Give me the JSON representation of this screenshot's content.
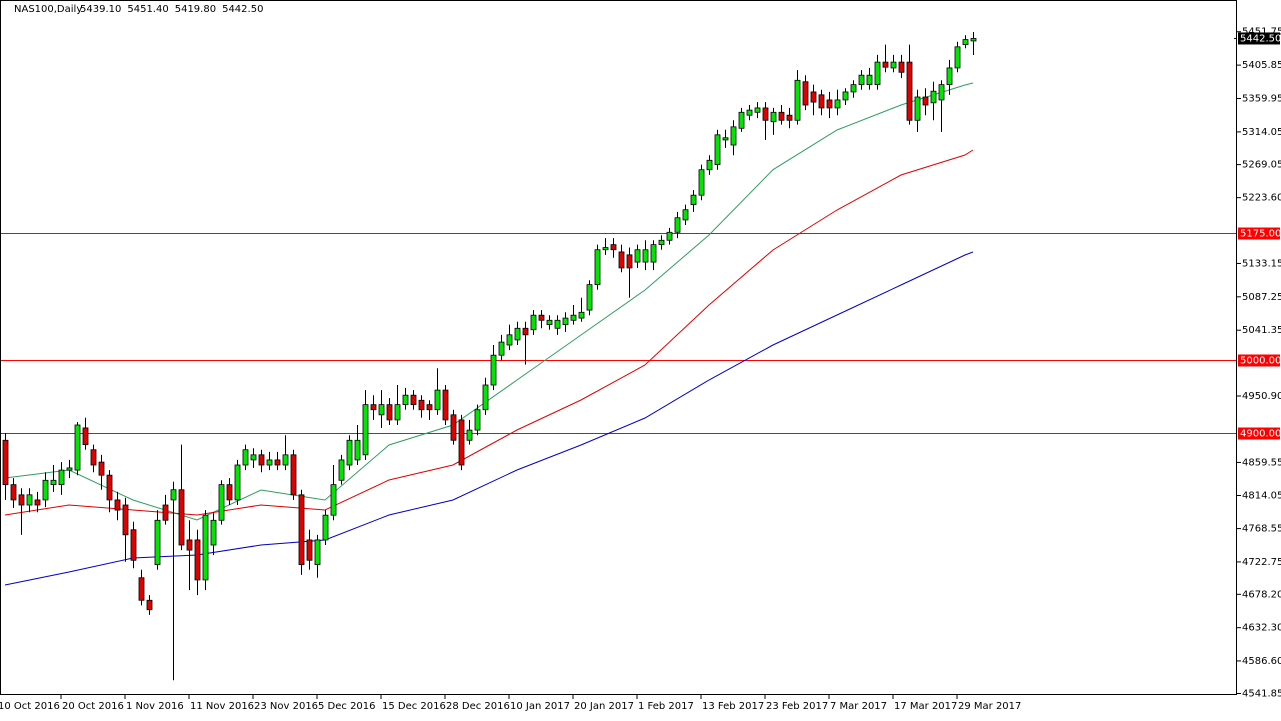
{
  "chart_data": {
    "type": "candlestick",
    "symbol": "NAS100,Daily",
    "header_values": [
      "5439.10",
      "5451.40",
      "5419.80",
      "5442.50"
    ],
    "xlim": [
      -0.625,
      154
    ],
    "ylim": [
      4539.75,
      5495.4
    ],
    "xticks": [
      {
        "value": -1,
        "label": "10 Oct 2016"
      },
      {
        "value": 7,
        "label": "20 Oct 2016"
      },
      {
        "value": 15,
        "label": "1 Nov 2016"
      },
      {
        "value": 23,
        "label": "11 Nov 2016"
      },
      {
        "value": 31,
        "label": "23 Nov 2016"
      },
      {
        "value": 39,
        "label": "5 Dec 2016"
      },
      {
        "value": 47,
        "label": "15 Dec 2016"
      },
      {
        "value": 55,
        "label": "28 Dec 2016"
      },
      {
        "value": 63,
        "label": "10 Jan 2017"
      },
      {
        "value": 71,
        "label": "20 Jan 2017"
      },
      {
        "value": 79,
        "label": "1 Feb 2017"
      },
      {
        "value": 87,
        "label": "13 Feb 2017"
      },
      {
        "value": 95,
        "label": "23 Feb 2017"
      },
      {
        "value": 103,
        "label": "7 Mar 2017"
      },
      {
        "value": 111,
        "label": "17 Mar 2017"
      },
      {
        "value": 119,
        "label": "29 Mar 2017"
      }
    ],
    "yticks": [
      5451.75,
      5405.85,
      5359.95,
      5314.05,
      5269.05,
      {
        "value": 5223.6,
        "label": "5223.60"
      },
      5133.15,
      5087.25,
      5041.35,
      {
        "value": 4950.9,
        "label": "4950.90"
      },
      4859.55,
      4814.05,
      4768.55,
      4722.75,
      {
        "value": 4678.2,
        "label": "4678.20"
      },
      {
        "value": 4632.3,
        "label": "4632.30"
      },
      {
        "value": 4586.6,
        "label": "4586.60"
      },
      4541.85
    ],
    "levels": [
      {
        "value": 5175,
        "label": "5175.00"
      },
      {
        "value": 5000,
        "label": "5000.00"
      },
      {
        "value": 4900,
        "label": "4900.00"
      }
    ],
    "level_color": "#ff0000",
    "last_price": {
      "value": 5442.5,
      "label": "5442.50"
    },
    "up_color": "#00e600",
    "down_color": "#e00000",
    "open": [
      4890,
      4829,
      4815,
      4801,
      4808,
      4808,
      4829,
      4829,
      4849,
      4849,
      4907,
      4877,
      4860,
      4842,
      4808,
      4801,
      4767,
      4701,
      4670,
      4719,
      4801,
      4808,
      4822,
      4753,
      4753,
      4698,
      4746,
      4780,
      4829,
      4808,
      4856,
      4863,
      4870,
      4856,
      4863,
      4856,
      4870,
      4815,
      4753,
      4719,
      4753,
      4787,
      4835,
      4856,
      4863,
      4870,
      4939,
      4925,
      4939,
      4918,
      4939,
      4952,
      4945,
      4939,
      4932,
      4959,
      4925,
      4918,
      4890,
      4904,
      4932,
      4966,
      5007,
      5021,
      5028,
      5044,
      5042,
      5062,
      5049,
      5044,
      5049,
      5055,
      5058,
      5069,
      5104,
      5152,
      5159,
      5149,
      5145,
      5135,
      5135,
      5135,
      5159,
      5165,
      5176,
      5193,
      5214,
      5227,
      5262,
      5269,
      5303,
      5296,
      5319,
      5337,
      5341,
      5347,
      5328,
      5341,
      5337,
      5330,
      5383,
      5369,
      5365,
      5358,
      5347,
      5358,
      5369,
      5379,
      5379,
      5379,
      5410,
      5402,
      5410,
      5410,
      5330,
      5362,
      5354,
      5358,
      5379,
      5402,
      5434,
      5439.1
    ],
    "high": [
      4900,
      4838,
      4824,
      4824,
      4819,
      4846,
      4856,
      4860,
      4863,
      4915,
      4921,
      4884,
      4870,
      4849,
      4819,
      4811,
      4778,
      4712,
      4677,
      4794,
      4815,
      4833,
      4884,
      4780,
      4767,
      4794,
      4791,
      4835,
      4838,
      4863,
      4884,
      4879,
      4877,
      4874,
      4874,
      4897,
      4877,
      4822,
      4767,
      4760,
      4794,
      4856,
      4870,
      4897,
      4911,
      4959,
      4952,
      4959,
      4948,
      4966,
      4962,
      4959,
      4952,
      4945,
      4989,
      4966,
      4932,
      4925,
      4918,
      4939,
      4976,
      5021,
      5035,
      5049,
      5053,
      5053,
      5069,
      5069,
      5062,
      5062,
      5066,
      5076,
      5086,
      5110,
      5159,
      5168,
      5168,
      5159,
      5155,
      5159,
      5165,
      5165,
      5172,
      5182,
      5204,
      5214,
      5234,
      5269,
      5282,
      5317,
      5317,
      5330,
      5347,
      5351,
      5355,
      5355,
      5347,
      5351,
      5347,
      5399,
      5392,
      5379,
      5372,
      5369,
      5372,
      5374,
      5385,
      5399,
      5402,
      5420,
      5434,
      5420,
      5420,
      5434,
      5372,
      5374,
      5383,
      5385,
      5413,
      5438,
      5447,
      5451.4
    ],
    "low": [
      4808,
      4797,
      4760,
      4791,
      4791,
      4798,
      4819,
      4815,
      4838,
      4842,
      4877,
      4846,
      4822,
      4791,
      4780,
      4723,
      4714,
      4663,
      4650,
      4712,
      4774,
      4560,
      4739,
      4684,
      4677,
      4684,
      4732,
      4774,
      4801,
      4801,
      4849,
      4852,
      4846,
      4849,
      4849,
      4849,
      4808,
      4705,
      4712,
      4701,
      4746,
      4780,
      4829,
      4849,
      4856,
      4863,
      4918,
      4907,
      4911,
      4911,
      4932,
      4932,
      4921,
      4918,
      4925,
      4911,
      4884,
      4849,
      4884,
      4897,
      4925,
      4959,
      5000,
      5014,
      5021,
      4994,
      5035,
      5044,
      5042,
      5035,
      5039,
      5049,
      5053,
      5062,
      5097,
      5145,
      5141,
      5121,
      5086,
      5127,
      5124,
      5124,
      5152,
      5159,
      5168,
      5186,
      5204,
      5220,
      5255,
      5262,
      5292,
      5282,
      5314,
      5330,
      5333,
      5303,
      5310,
      5324,
      5319,
      5324,
      5344,
      5337,
      5337,
      5333,
      5337,
      5351,
      5361,
      5372,
      5372,
      5372,
      5396,
      5396,
      5388,
      5324,
      5314,
      5337,
      5330,
      5314,
      5365,
      5396,
      5429,
      5419.8
    ],
    "close": [
      4829,
      4808,
      4801,
      4815,
      4801,
      4835,
      4835,
      4849,
      4852,
      4911,
      4884,
      4856,
      4842,
      4808,
      4794,
      4760,
      4725,
      4670,
      4657,
      4780,
      4780,
      4822,
      4746,
      4739,
      4698,
      4787,
      4780,
      4829,
      4808,
      4856,
      4877,
      4870,
      4856,
      4863,
      4856,
      4870,
      4815,
      4719,
      4725,
      4753,
      4787,
      4829,
      4863,
      4890,
      4890,
      4939,
      4932,
      4939,
      4918,
      4939,
      4952,
      4939,
      4932,
      4932,
      4959,
      4918,
      4890,
      4856,
      4904,
      4932,
      4966,
      5007,
      5025,
      5035,
      5044,
      5035,
      5062,
      5055,
      5055,
      5055,
      5058,
      5062,
      5066,
      5104,
      5152,
      5155,
      5152,
      5127,
      5127,
      5152,
      5152,
      5159,
      5165,
      5176,
      5196,
      5207,
      5227,
      5262,
      5275,
      5310,
      5306,
      5321,
      5341,
      5344,
      5347,
      5330,
      5341,
      5330,
      5330,
      5385,
      5351,
      5355,
      5347,
      5347,
      5358,
      5369,
      5379,
      5392,
      5392,
      5410,
      5403,
      5410,
      5396,
      5330,
      5362,
      5351,
      5370,
      5379,
      5402,
      5431,
      5441,
      5442.5
    ],
    "moving_averages": [
      {
        "color": "#2e9e5e",
        "x": [
          0,
          8,
          16,
          24,
          32,
          40,
          48,
          56,
          64,
          72,
          80,
          88,
          96,
          104,
          112,
          120,
          121
        ],
        "values": [
          4838.1,
          4849.1,
          4807.9,
          4780.4,
          4821.6,
          4807.9,
          4883.5,
          4911.0,
          4972.9,
          5034.8,
          5096.6,
          5172.3,
          5262.0,
          5316.7,
          5351.0,
          5378.5,
          5381.3
        ]
      },
      {
        "color": "#e00000",
        "x": [
          0,
          8,
          16,
          24,
          32,
          40,
          48,
          56,
          64,
          72,
          80,
          88,
          96,
          104,
          112,
          120,
          121
        ],
        "values": [
          4787.3,
          4801.0,
          4794.2,
          4787.3,
          4801.0,
          4794.2,
          4835.4,
          4856.0,
          4904.1,
          4945.4,
          4993.5,
          5076.0,
          5151.7,
          5206.7,
          5254.8,
          5282.3,
          5289.2
        ]
      },
      {
        "color": "#0000c8",
        "x": [
          0,
          8,
          16,
          24,
          32,
          40,
          48,
          56,
          64,
          72,
          80,
          88,
          96,
          104,
          112,
          120,
          121
        ],
        "values": [
          4691.0,
          4708.9,
          4728.1,
          4732.3,
          4746.0,
          4752.9,
          4787.3,
          4807.9,
          4849.1,
          4883.5,
          4920.6,
          4972.9,
          5021.0,
          5062.3,
          5103.5,
          5144.8,
          5148.9
        ]
      }
    ]
  }
}
